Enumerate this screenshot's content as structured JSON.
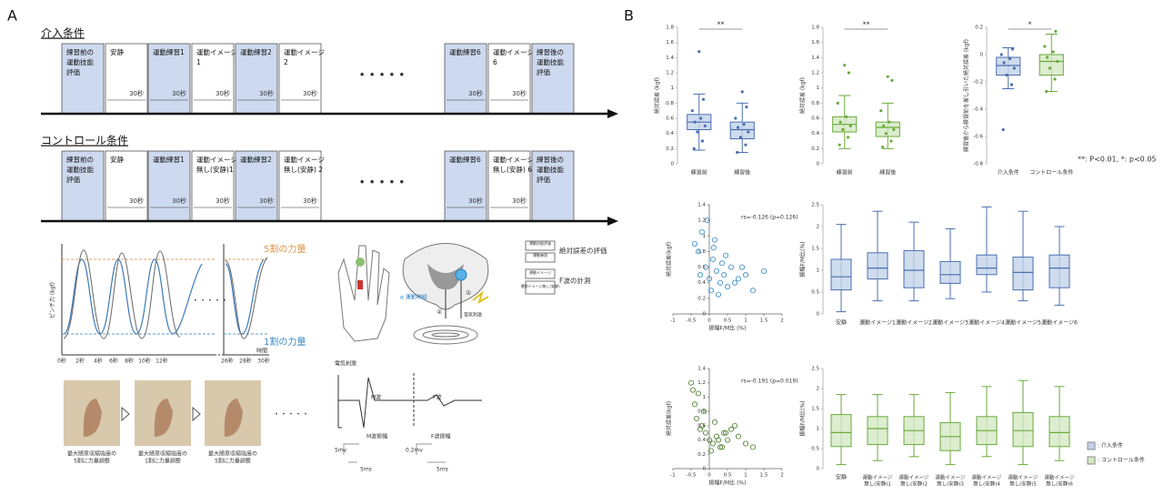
{
  "panel_a": {
    "label": "A",
    "intervention": {
      "title": "介入条件",
      "ellipsis": "• • • • •",
      "blocks": [
        {
          "label": [
            "練習前の",
            "運動技能",
            "評価"
          ],
          "fill": "#cdd9ee"
        },
        {
          "label": [
            "安静"
          ],
          "duration": "30秒",
          "fill": "#ffffff"
        },
        {
          "label": [
            "運動練習1"
          ],
          "duration": "30秒",
          "fill": "#cdd9ee"
        },
        {
          "label": [
            "運動イメージ",
            "1"
          ],
          "duration": "30秒",
          "fill": "#ffffff"
        },
        {
          "label": [
            "運動練習2"
          ],
          "duration": "30秒",
          "fill": "#cdd9ee"
        },
        {
          "label": [
            "運動イメージ",
            "2"
          ],
          "duration": "30秒",
          "fill": "#ffffff"
        },
        {
          "label": [
            "運動練習6"
          ],
          "duration": "30秒",
          "fill": "#cdd9ee"
        },
        {
          "label": [
            "運動イメージ",
            "6"
          ],
          "duration": "30秒",
          "fill": "#ffffff"
        },
        {
          "label": [
            "練習後の",
            "運動技能",
            "評価"
          ],
          "fill": "#cdd9ee"
        }
      ]
    },
    "control": {
      "title": "コントロール条件",
      "ellipsis": "• • • • •",
      "blocks": [
        {
          "label": [
            "練習前の",
            "運動技能",
            "評価"
          ],
          "fill": "#cdd9ee"
        },
        {
          "label": [
            "安静"
          ],
          "duration": "30秒",
          "fill": "#ffffff"
        },
        {
          "label": [
            "運動練習1"
          ],
          "duration": "30秒",
          "fill": "#cdd9ee"
        },
        {
          "label": [
            "運動イメージ",
            "無し(安静)1"
          ],
          "duration": "30秒",
          "fill": "#ffffff"
        },
        {
          "label": [
            "運動練習2"
          ],
          "duration": "30秒",
          "fill": "#cdd9ee"
        },
        {
          "label": [
            "運動イメージ",
            "無し(安静) 2"
          ],
          "duration": "30秒",
          "fill": "#ffffff"
        },
        {
          "label": [
            "運動練習6"
          ],
          "duration": "30秒",
          "fill": "#cdd9ee"
        },
        {
          "label": [
            "運動イメージ",
            "無し(安静) 6"
          ],
          "duration": "30秒",
          "fill": "#ffffff"
        },
        {
          "label": [
            "練習後の",
            "運動技能",
            "評価"
          ],
          "fill": "#cdd9ee"
        }
      ]
    },
    "force_plot": {
      "ylabel": "ピンチ力 (kgf)",
      "xlabel": "時間",
      "top_label": "5割の力量",
      "bottom_label": "1割の力量",
      "ellipsis": "・・・・・",
      "xticks": [
        "0秒",
        "2秒",
        "4秒",
        "6秒",
        "8秒",
        "10秒",
        "12秒",
        "26秒",
        "28秒",
        "30秒"
      ]
    },
    "nerve": {
      "motor_nerve": "α 運動神経",
      "stim": "電気刺激",
      "n1": "①",
      "n2": "②",
      "legend": [
        [
          "運動技能評価",
          "運動練習"
        ],
        [
          "運動イメージ",
          "運動イメージ無し(安静)"
        ]
      ],
      "legend_labels": [
        "絶対誤差の評価",
        "F波の計測"
      ]
    },
    "wave": {
      "title": "電気刺激",
      "m": "M波",
      "m_amp": "M波振幅",
      "f": "F波",
      "f_amp": "F波振幅",
      "scale_v1": "5mv",
      "scale_v2": "0.2mv",
      "scale_t1": "5ms",
      "scale_t2": "5ms"
    },
    "photos": {
      "captions": [
        [
          "最大随意収縮強度の",
          "5割に力量調整"
        ],
        [
          "最大随意収縮強度の",
          "1割に力量調整"
        ],
        [
          "最大随意収縮強度の",
          "5割に力量調整"
        ]
      ],
      "ellipsis": "・・・・・"
    }
  },
  "panel_b": {
    "label": "B",
    "note": "**: P<0.01, *: p<0.05",
    "legend": [
      {
        "label": ": 介入条件",
        "color": "#c3d3ea"
      },
      {
        "label": ": コントロール条件",
        "color": "#d5e9c4"
      }
    ]
  },
  "chart_data": [
    {
      "type": "box",
      "ylabel": "絶対誤差 (kgf)",
      "categories": [
        "練習前",
        "練習後"
      ],
      "significance": "**",
      "ylim": [
        0,
        1.8
      ],
      "yticks": [
        0,
        0.2,
        0.4,
        0.6,
        0.8,
        1,
        1.2,
        1.4,
        1.6,
        1.8
      ],
      "colors": [
        "#4a6fb0",
        "#4a6fb0"
      ],
      "fills": [
        "#c3d3ea",
        "#c3d3ea"
      ],
      "boxes": [
        {
          "min": 0.18,
          "q1": 0.45,
          "median": 0.55,
          "q3": 0.65,
          "max": 0.92,
          "points": [
            0.2,
            0.3,
            0.42,
            0.5,
            0.55,
            0.6,
            0.7,
            0.85,
            1.48
          ]
        },
        {
          "min": 0.15,
          "q1": 0.33,
          "median": 0.45,
          "q3": 0.55,
          "max": 0.8,
          "points": [
            0.15,
            0.25,
            0.35,
            0.42,
            0.48,
            0.52,
            0.6,
            0.75,
            0.95
          ]
        }
      ]
    },
    {
      "type": "box",
      "ylabel": "絶対誤差 (kgf)",
      "categories": [
        "練習前",
        "練習後"
      ],
      "significance": "**",
      "ylim": [
        0,
        1.8
      ],
      "yticks": [
        0,
        0.2,
        0.4,
        0.6,
        0.8,
        1,
        1.2,
        1.4,
        1.6,
        1.8
      ],
      "colors": [
        "#6aaa3a",
        "#6aaa3a"
      ],
      "fills": [
        "#d5e9c4",
        "#d5e9c4"
      ],
      "boxes": [
        {
          "min": 0.2,
          "q1": 0.42,
          "median": 0.52,
          "q3": 0.62,
          "max": 0.9,
          "points": [
            0.25,
            0.35,
            0.45,
            0.5,
            0.55,
            0.62,
            0.8,
            1.2,
            1.3
          ]
        },
        {
          "min": 0.2,
          "q1": 0.36,
          "median": 0.48,
          "q3": 0.55,
          "max": 0.8,
          "points": [
            0.22,
            0.3,
            0.4,
            0.45,
            0.5,
            0.55,
            0.7,
            1.1,
            1.15
          ]
        }
      ]
    },
    {
      "type": "box",
      "ylabel": "練習後から練習前を差し引いた絶対誤差 (kgf)",
      "categories": [
        "介入条件",
        "コントロール条件"
      ],
      "significance": "*",
      "ylim": [
        -0.8,
        0.2
      ],
      "yticks": [
        -0.8,
        -0.6,
        -0.4,
        -0.2,
        0,
        0.2
      ],
      "colors": [
        "#4a6fb0",
        "#6aaa3a"
      ],
      "fills": [
        "#c3d3ea",
        "#d5e9c4"
      ],
      "boxes": [
        {
          "min": -0.25,
          "q1": -0.15,
          "median": -0.08,
          "q3": -0.02,
          "max": 0.05,
          "points": [
            -0.55,
            -0.22,
            -0.15,
            -0.1,
            -0.06,
            -0.03,
            0.0,
            0.04
          ]
        },
        {
          "min": -0.27,
          "q1": -0.15,
          "median": -0.05,
          "q3": 0.0,
          "max": 0.15,
          "points": [
            -0.27,
            -0.18,
            -0.1,
            -0.05,
            -0.02,
            0.02,
            0.06,
            0.17
          ]
        }
      ]
    },
    {
      "type": "scatter",
      "xlabel": "振幅F/M比 (%)",
      "ylabel": "絶対誤差(kgf)",
      "annotation": "rs=-0.126 (p=0.126)",
      "color": "#2e86c8",
      "xlim": [
        -1,
        2
      ],
      "xticks": [
        -1,
        -0.5,
        0,
        0.5,
        1,
        1.5,
        2
      ],
      "ylim": [
        0,
        1.4
      ],
      "yticks": [
        0,
        0.2,
        0.4,
        0.6,
        0.8,
        1,
        1.2,
        1.4
      ],
      "x": [
        -0.3,
        -0.2,
        -0.1,
        0,
        0.1,
        0.2,
        0.3,
        0.4,
        0.5,
        0.6,
        0.8,
        1,
        1.2,
        1.5,
        -0.4,
        -0.05,
        0.05,
        0.15,
        0.25,
        0.35,
        0.45,
        -0.25,
        0.12,
        0.7,
        0.9
      ],
      "y": [
        0.8,
        1.05,
        0.6,
        0.45,
        0.7,
        0.55,
        0.4,
        0.5,
        0.35,
        0.6,
        0.45,
        0.5,
        0.3,
        0.55,
        0.9,
        1.2,
        0.3,
        0.95,
        0.25,
        0.65,
        0.75,
        0.5,
        0.85,
        0.4,
        0.6
      ]
    },
    {
      "type": "box",
      "ylabel": "振幅F/M比(%)",
      "categories": [
        "安静",
        "運動イメージ1",
        "運動イメージ2",
        "運動イメージ3",
        "運動イメージ4",
        "運動イメージ5",
        "運動イメージ6"
      ],
      "ylim": [
        0,
        2.5
      ],
      "yticks": [
        0,
        0.5,
        1,
        1.5,
        2,
        2.5
      ],
      "colors": [
        "#4a6fb0",
        "#4a6fb0",
        "#4a6fb0",
        "#4a6fb0",
        "#4a6fb0",
        "#4a6fb0",
        "#4a6fb0"
      ],
      "fills": [
        "#c3d3ea",
        "#c3d3ea",
        "#c3d3ea",
        "#c3d3ea",
        "#c3d3ea",
        "#c3d3ea",
        "#c3d3ea"
      ],
      "boxes": [
        {
          "min": 0.05,
          "q1": 0.55,
          "median": 0.85,
          "q3": 1.25,
          "max": 2.05
        },
        {
          "min": 0.3,
          "q1": 0.8,
          "median": 1.05,
          "q3": 1.4,
          "max": 2.35
        },
        {
          "min": 0.3,
          "q1": 0.6,
          "median": 1,
          "q3": 1.45,
          "max": 2.1
        },
        {
          "min": 0.35,
          "q1": 0.7,
          "median": 0.9,
          "q3": 1.2,
          "max": 1.95
        },
        {
          "min": 0.5,
          "q1": 0.9,
          "median": 1.05,
          "q3": 1.35,
          "max": 2.45
        },
        {
          "min": 0.3,
          "q1": 0.55,
          "median": 0.95,
          "q3": 1.3,
          "max": 2.35
        },
        {
          "min": 0.2,
          "q1": 0.6,
          "median": 1.05,
          "q3": 1.35,
          "max": 2
        }
      ]
    },
    {
      "type": "scatter",
      "xlabel": "振幅F/M比 (%)",
      "ylabel": "絶対誤差(kgf)",
      "annotation": "rs=-0.191 (p=0.019)",
      "color": "#4a7a2a",
      "xlim": [
        -1,
        2
      ],
      "xticks": [
        -1,
        -0.5,
        0,
        0.5,
        1,
        1.5,
        2
      ],
      "ylim": [
        0,
        1.4
      ],
      "yticks": [
        0,
        0.2,
        0.4,
        0.6,
        0.8,
        1,
        1.2,
        1.4
      ],
      "x": [
        -0.5,
        -0.4,
        -0.3,
        -0.2,
        -0.1,
        0,
        0.1,
        0.2,
        0.3,
        0.4,
        0.5,
        0.6,
        0.8,
        1,
        -0.35,
        -0.15,
        0.05,
        0.15,
        0.25,
        -0.25,
        0.35,
        -0.45,
        0.7,
        1.2,
        0.45
      ],
      "y": [
        1.2,
        0.9,
        1.05,
        0.6,
        0.5,
        0.4,
        0.35,
        0.45,
        0.3,
        0.5,
        0.4,
        0.55,
        0.45,
        0.35,
        0.7,
        0.8,
        0.25,
        0.65,
        0.4,
        0.55,
        0.3,
        1.1,
        0.6,
        0.3,
        0.5
      ]
    },
    {
      "type": "box",
      "ylabel": "振幅F/M比(%)",
      "categories": [
        "安静",
        [
          "運動イメージ",
          "無し(安静)1"
        ],
        [
          "運動イメージ",
          "無し(安静)2"
        ],
        [
          "運動イメージ",
          "無し(安静)3"
        ],
        [
          "運動イメージ",
          "無し(安静)4"
        ],
        [
          "運動イメージ",
          "無し(安静)5"
        ],
        [
          "運動イメージ",
          "無し(安静)6"
        ]
      ],
      "ylim": [
        0,
        2.5
      ],
      "yticks": [
        0,
        0.5,
        1,
        1.5,
        2,
        2.5
      ],
      "colors": [
        "#6aaa3a",
        "#6aaa3a",
        "#6aaa3a",
        "#6aaa3a",
        "#6aaa3a",
        "#6aaa3a",
        "#6aaa3a"
      ],
      "fills": [
        "#d5e9c4",
        "#d5e9c4",
        "#d5e9c4",
        "#d5e9c4",
        "#d5e9c4",
        "#d5e9c4",
        "#d5e9c4"
      ],
      "boxes": [
        {
          "min": 0.1,
          "q1": 0.55,
          "median": 0.9,
          "q3": 1.35,
          "max": 1.85
        },
        {
          "min": 0.2,
          "q1": 0.6,
          "median": 1,
          "q3": 1.3,
          "max": 1.85
        },
        {
          "min": 0.3,
          "q1": 0.6,
          "median": 0.95,
          "q3": 1.3,
          "max": 1.85
        },
        {
          "min": 0.1,
          "q1": 0.45,
          "median": 0.8,
          "q3": 1.15,
          "max": 1.9
        },
        {
          "min": 0.3,
          "q1": 0.6,
          "median": 0.95,
          "q3": 1.3,
          "max": 2.05
        },
        {
          "min": 0.1,
          "q1": 0.55,
          "median": 0.95,
          "q3": 1.4,
          "max": 2.2
        },
        {
          "min": 0.2,
          "q1": 0.55,
          "median": 0.9,
          "q3": 1.3,
          "max": 2.05
        }
      ]
    }
  ]
}
